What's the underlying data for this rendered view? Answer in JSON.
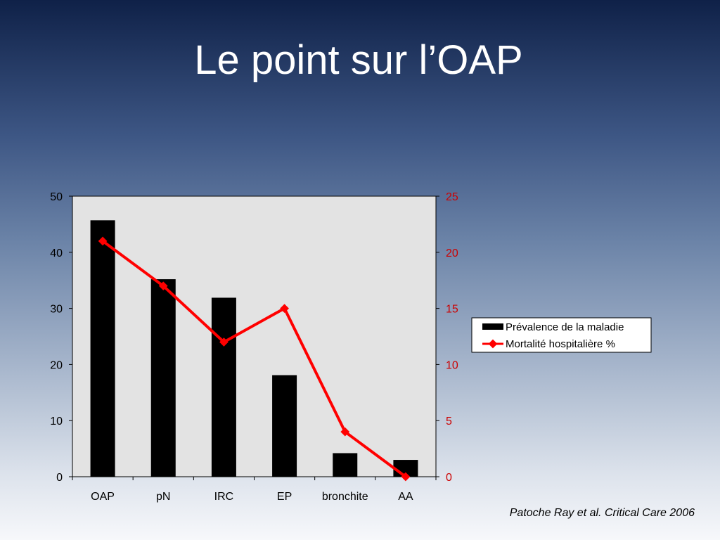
{
  "slide": {
    "title": "Le point sur l’OAP",
    "citation": "Patoche Ray et al. Critical Care 2006"
  },
  "chart_data": {
    "type": "bar",
    "categories": [
      "OAP",
      "pN",
      "IRC",
      "EP",
      "bronchite",
      "AA"
    ],
    "series": [
      {
        "name": "Prévalence de la maladie",
        "type": "bar",
        "axis": "left",
        "color": "#000000",
        "values": [
          45.7,
          35.2,
          31.9,
          18.1,
          4.2,
          3.0
        ]
      },
      {
        "name": "Mortalité hospitalière %",
        "type": "line",
        "axis": "right",
        "color": "#ff0000",
        "values": [
          21,
          17,
          12,
          15,
          4,
          0
        ]
      }
    ],
    "y_left": {
      "min": 0,
      "max": 50,
      "ticks": [
        0,
        10,
        20,
        30,
        40,
        50
      ],
      "color": "#000000"
    },
    "y_right": {
      "min": 0,
      "max": 25,
      "ticks": [
        0,
        5,
        10,
        15,
        20,
        25
      ],
      "color": "#cc0000"
    },
    "grid": false,
    "legend_position": "right",
    "plot_background": "#e3e3e3"
  }
}
